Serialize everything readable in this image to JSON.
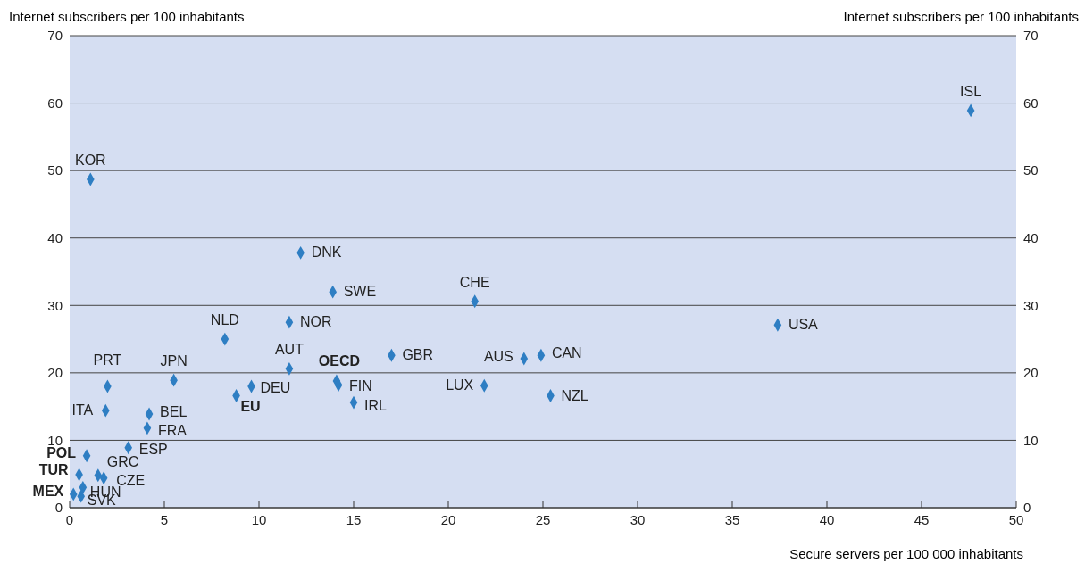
{
  "chart_data": {
    "type": "scatter",
    "xlabel": "Secure servers per 100 000 inhabitants",
    "ylabel": "Internet subscribers per 100 inhabitants",
    "y2label": "Internet subscribers per 100 inhabitants",
    "xlim": [
      0,
      50
    ],
    "xticks": [
      0,
      5,
      10,
      15,
      20,
      25,
      30,
      35,
      40,
      45,
      50
    ],
    "ylim": [
      0,
      70
    ],
    "yticks": [
      0,
      10,
      20,
      30,
      40,
      50,
      60,
      70
    ],
    "y2lim": [
      0,
      70
    ],
    "y2ticks": [
      0,
      10,
      20,
      30,
      40,
      50,
      60,
      70
    ],
    "grid": "y",
    "legend": false,
    "marker": "diamond",
    "series": [
      {
        "name": "KOR",
        "color": "#2e7ec3",
        "x": [
          1.1
        ],
        "values": [
          48.7
        ]
      },
      {
        "name": "ISL",
        "color": "#2e7ec3",
        "x": [
          47.6
        ],
        "values": [
          58.9
        ]
      },
      {
        "name": "DNK",
        "color": "#2e7ec3",
        "x": [
          12.2
        ],
        "values": [
          37.8
        ]
      },
      {
        "name": "SWE",
        "color": "#2e7ec3",
        "x": [
          13.9
        ],
        "values": [
          32.0
        ]
      },
      {
        "name": "CHE",
        "color": "#2e7ec3",
        "x": [
          21.4
        ],
        "values": [
          30.6
        ]
      },
      {
        "name": "USA",
        "color": "#2e7ec3",
        "x": [
          37.4
        ],
        "values": [
          27.1
        ]
      },
      {
        "name": "NLD",
        "color": "#2e7ec3",
        "x": [
          8.2
        ],
        "values": [
          25.0
        ]
      },
      {
        "name": "NOR",
        "color": "#2e7ec3",
        "x": [
          11.6
        ],
        "values": [
          27.5
        ]
      },
      {
        "name": "GBR",
        "color": "#2e7ec3",
        "x": [
          17.0
        ],
        "values": [
          22.6
        ]
      },
      {
        "name": "AUS",
        "color": "#2e7ec3",
        "x": [
          24.0
        ],
        "values": [
          22.1
        ]
      },
      {
        "name": "CAN",
        "color": "#2e7ec3",
        "x": [
          24.9
        ],
        "values": [
          22.6
        ]
      },
      {
        "name": "AUT",
        "color": "#2e7ec3",
        "x": [
          11.6
        ],
        "values": [
          20.6
        ]
      },
      {
        "name": "OECD",
        "color": "#2e7ec3",
        "x": [
          14.1
        ],
        "values": [
          18.8
        ]
      },
      {
        "name": "FIN",
        "color": "#2e7ec3",
        "x": [
          14.2
        ],
        "values": [
          18.2
        ]
      },
      {
        "name": "IRL",
        "color": "#2e7ec3",
        "x": [
          15.0
        ],
        "values": [
          15.6
        ]
      },
      {
        "name": "LUX",
        "color": "#2e7ec3",
        "x": [
          21.9
        ],
        "values": [
          18.1
        ]
      },
      {
        "name": "NZL",
        "color": "#2e7ec3",
        "x": [
          25.4
        ],
        "values": [
          16.6
        ]
      },
      {
        "name": "JPN",
        "color": "#2e7ec3",
        "x": [
          5.5
        ],
        "values": [
          18.9
        ]
      },
      {
        "name": "DEU",
        "color": "#2e7ec3",
        "x": [
          9.6
        ],
        "values": [
          18.0
        ]
      },
      {
        "name": "EU",
        "color": "#2e7ec3",
        "x": [
          8.8
        ],
        "values": [
          16.6
        ]
      },
      {
        "name": "PRT",
        "color": "#2e7ec3",
        "x": [
          2.0
        ],
        "values": [
          18.0
        ]
      },
      {
        "name": "ITA",
        "color": "#2e7ec3",
        "x": [
          1.9
        ],
        "values": [
          14.4
        ]
      },
      {
        "name": "BEL",
        "color": "#2e7ec3",
        "x": [
          4.2
        ],
        "values": [
          13.9
        ]
      },
      {
        "name": "FRA",
        "color": "#2e7ec3",
        "x": [
          4.1
        ],
        "values": [
          11.8
        ]
      },
      {
        "name": "ESP",
        "color": "#2e7ec3",
        "x": [
          3.1
        ],
        "values": [
          8.9
        ]
      },
      {
        "name": "POL",
        "color": "#2e7ec3",
        "x": [
          0.9
        ],
        "values": [
          7.7
        ]
      },
      {
        "name": "GRC",
        "color": "#2e7ec3",
        "x": [
          1.5
        ],
        "values": [
          4.8
        ]
      },
      {
        "name": "TUR",
        "color": "#2e7ec3",
        "x": [
          0.5
        ],
        "values": [
          4.9
        ]
      },
      {
        "name": "CZE",
        "color": "#2e7ec3",
        "x": [
          1.8
        ],
        "values": [
          4.4
        ]
      },
      {
        "name": "HUN",
        "color": "#2e7ec3",
        "x": [
          0.7
        ],
        "values": [
          3.0
        ]
      },
      {
        "name": "MEX",
        "color": "#2e7ec3",
        "x": [
          0.2
        ],
        "values": [
          2.0
        ]
      },
      {
        "name": "SVK",
        "color": "#2e7ec3",
        "x": [
          0.6
        ],
        "values": [
          1.7
        ]
      }
    ]
  }
}
